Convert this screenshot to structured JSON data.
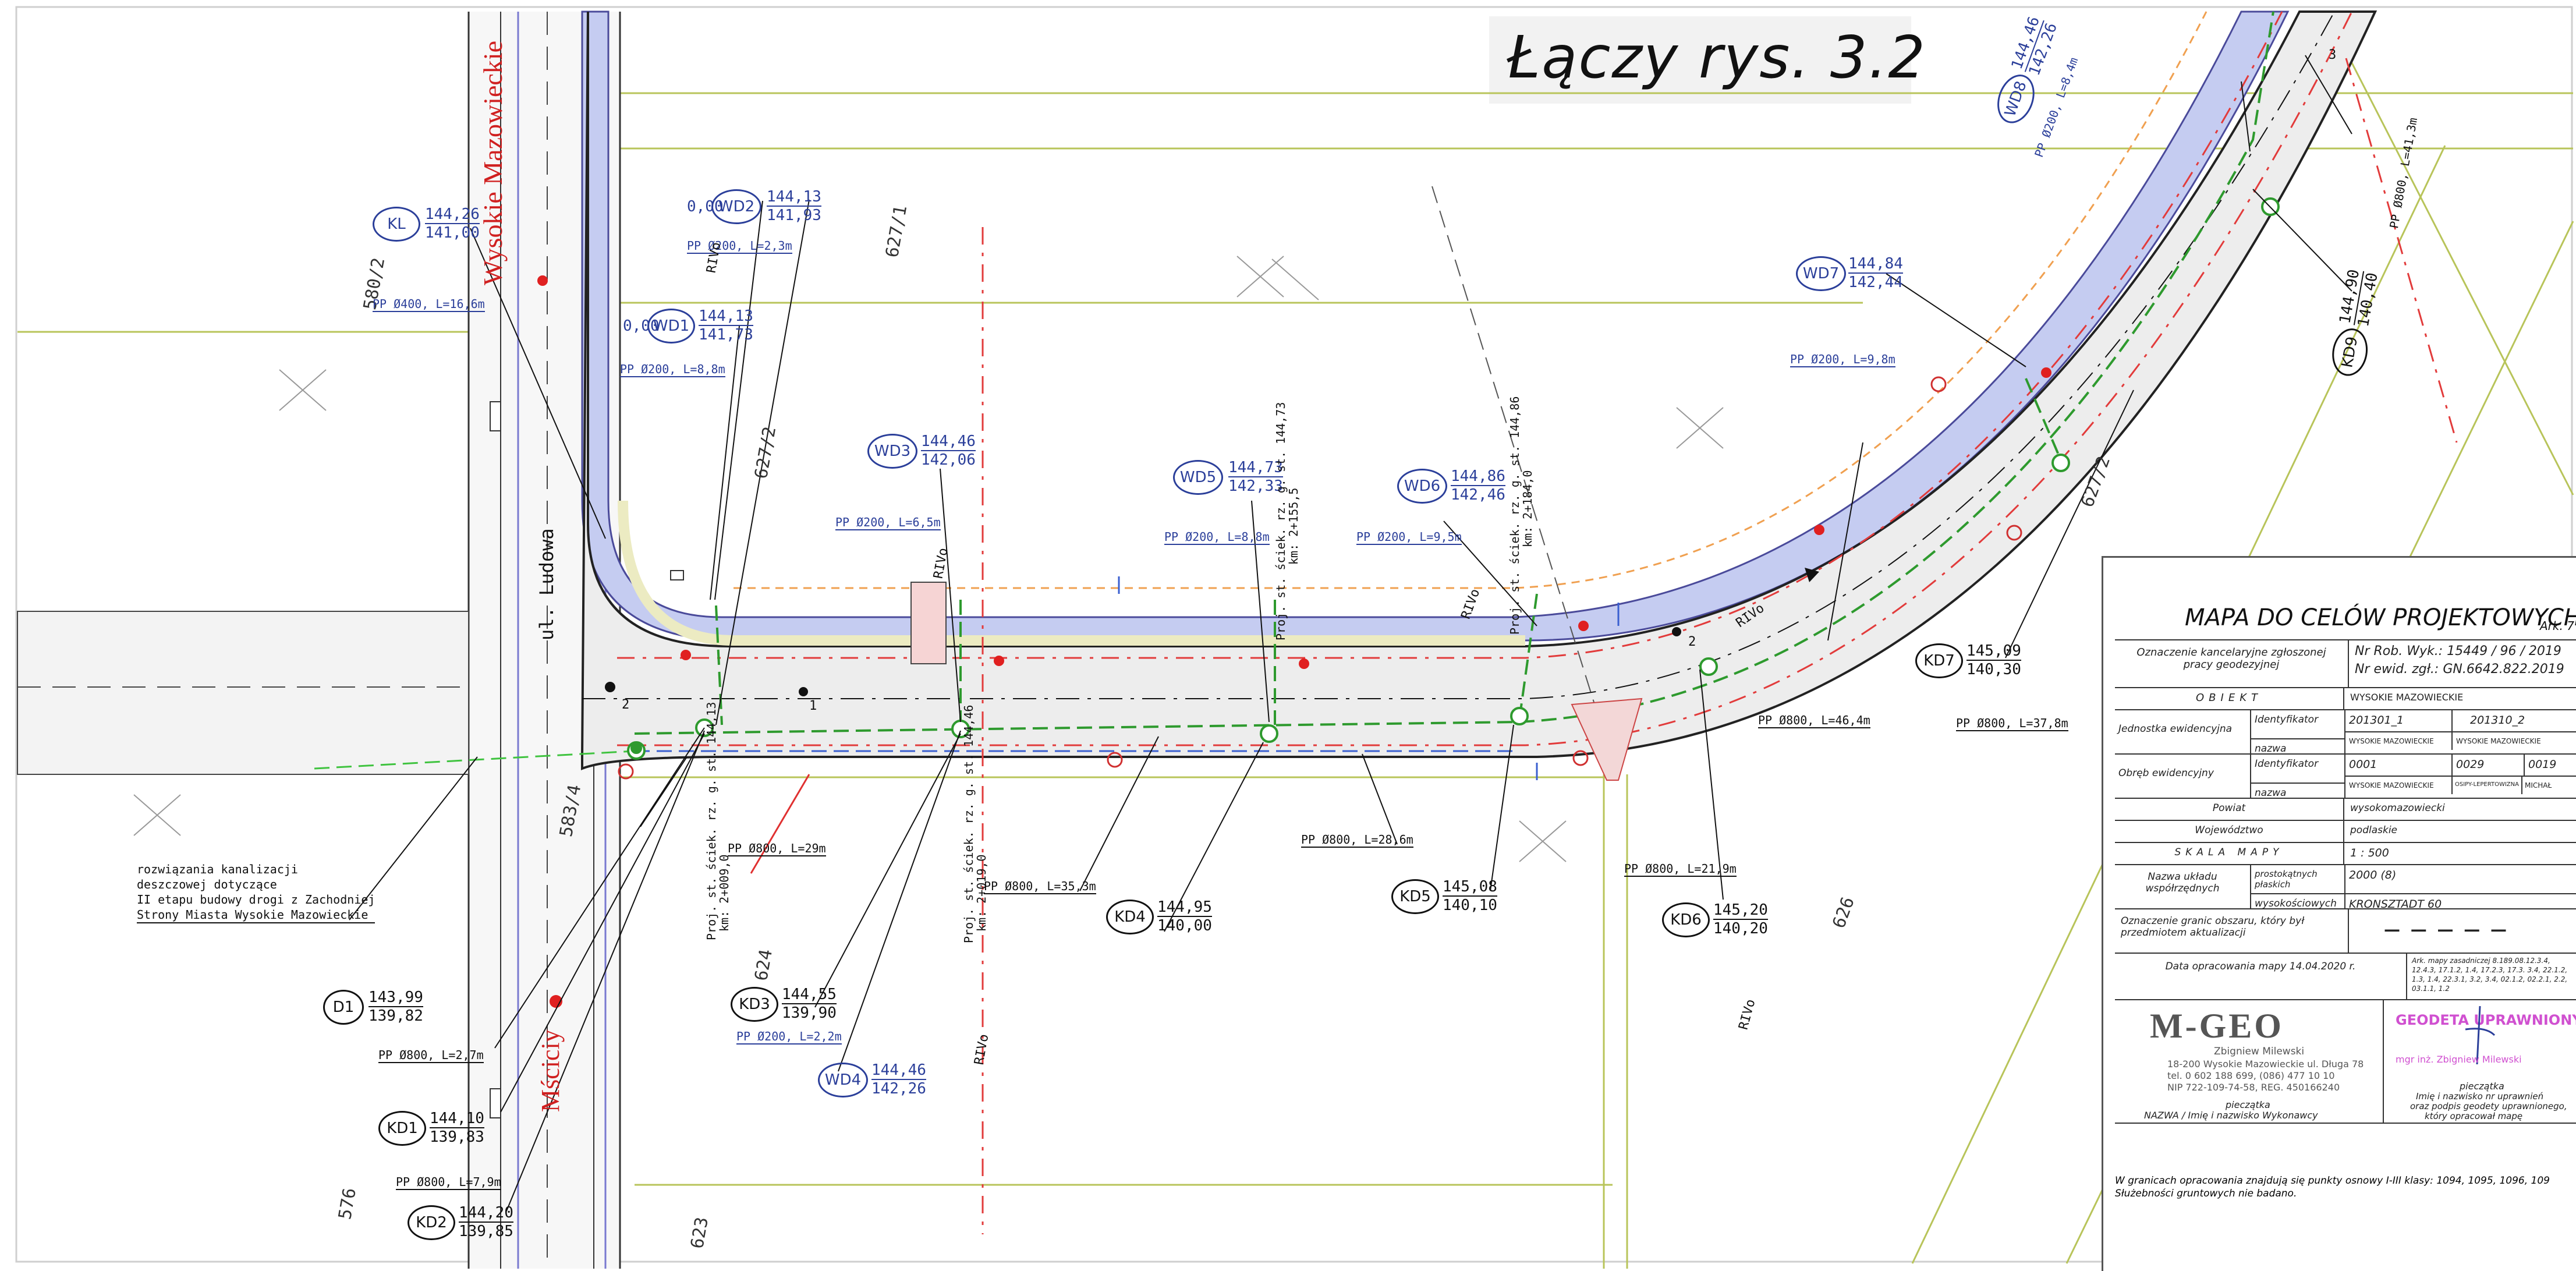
{
  "header_title": "Łączy rys. 3.2",
  "streets": {
    "main_vertical": "Wysokie Mazowieckie",
    "ludowa": "ul. Ludowa",
    "msciciy": "Mściciy"
  },
  "parcels": [
    "580/2",
    "627/1",
    "627/2",
    "583/4",
    "624",
    "623",
    "626",
    "576",
    "627/2"
  ],
  "wells": [
    {
      "id": "KL",
      "top": "144,26",
      "bottom": "141,00"
    },
    {
      "id": "WD2",
      "top": "144,13",
      "bottom": "141,93"
    },
    {
      "id": "WD1",
      "top": "144,13",
      "bottom": "141,73"
    },
    {
      "id": "WD3",
      "top": "144,46",
      "bottom": "142,06"
    },
    {
      "id": "WD5",
      "top": "144,73",
      "bottom": "142,33"
    },
    {
      "id": "WD6",
      "top": "144,86",
      "bottom": "142,46"
    },
    {
      "id": "WD7",
      "top": "144,84",
      "bottom": "142,44"
    },
    {
      "id": "WD8",
      "top": "144,46",
      "bottom": "142,26"
    },
    {
      "id": "KD7",
      "top": "145,09",
      "bottom": "140,30"
    },
    {
      "id": "KD4",
      "top": "144,95",
      "bottom": "140,00"
    },
    {
      "id": "KD5",
      "top": "145,08",
      "bottom": "140,10"
    },
    {
      "id": "KD6",
      "top": "145,20",
      "bottom": "140,20"
    },
    {
      "id": "KD3",
      "top": "144,55",
      "bottom": "139,90"
    },
    {
      "id": "WD4",
      "top": "144,46",
      "bottom": "142,26"
    },
    {
      "id": "D1",
      "top": "143,99",
      "bottom": "139,82"
    },
    {
      "id": "KD1",
      "top": "144,10",
      "bottom": "139,83"
    },
    {
      "id": "KD2",
      "top": "144,20",
      "bottom": "139,85"
    },
    {
      "id": "KD9",
      "top": "144,90",
      "bottom": "140,40"
    }
  ],
  "pipes": {
    "p1": "PP Ø400, L=16,6m",
    "p2": "PP Ø200, L=8,8m",
    "p3": "PP Ø200, L=2,3m",
    "p4": "PP Ø200, L=6,5m",
    "p5": "PP Ø200, L=8,8m",
    "p6": "PP Ø200, L=9,5m",
    "p7": "PP Ø200, L=9,8m",
    "p8": "PP Ø200, L=8,4m",
    "p9": "PP Ø800, L=46,4m",
    "p10": "PP Ø800, L=37,8m",
    "p11": "PP Ø800, L=29m",
    "p12": "PP Ø800, L=35,3m",
    "p13": "PP Ø800, L=28,6m",
    "p14": "PP Ø800, L=21,9m",
    "p15": "PP Ø800, L=2,7m",
    "p16": "PP Ø800, L=7,9m",
    "p17": "PP Ø200, L=2,2m",
    "p18": "PP Ø800, L=41,3m"
  },
  "gutter_labels": {
    "g1": "Proj. st. ściek. rz. g. st. 144,13",
    "g2": "km: 2+009,0",
    "g3": "Proj. st. ściek. rz. g. st. 144,46",
    "g4": "km: 2+019,0",
    "g5": "Proj. st. ściek. rz. g. st. 144,73",
    "g6": "km: 2+155,5",
    "g7": "Proj. st. ściek. rz. g. st. 144,86",
    "g8": "km: 2+184,0"
  },
  "zero_labels": [
    "0,00",
    "0,00"
  ],
  "note_lines": [
    "rozwiązania kanalizacji",
    "deszczowej dotyczące",
    "II etapu budowy drogi z Zachodniej",
    "Strony Miasta Wysokie Mazowieckie"
  ],
  "title_block": {
    "heading": "MAPA DO CELÓW PROJEKTOWYCH",
    "sheet": "Ark. 7",
    "rows": [
      {
        "label": "Oznaczenie kancelaryjne zgłoszonej pracy geodezyjnej",
        "value": "Nr Rob. Wyk.: 15449 / 96 / 2019",
        "value2": "Nr ewid. zgł.: GN.6642.822.2019"
      },
      {
        "label": "OBIEKT",
        "value": "WYSOKIE MAZOWIECKIE"
      },
      {
        "label": "Jednostka ewidencyjna",
        "sub1": "Identyfikator",
        "v1a": "201301_1",
        "v1b": "201310_2",
        "sub2": "nazwa",
        "v2a": "WYSOKIE MAZOWIECKIE",
        "v2b": "WYSOKIE MAZOWIECKIE"
      },
      {
        "label": "Obręb ewidencyjny",
        "sub1": "Identyfikator",
        "v1a": "0001",
        "v1b": "0029",
        "v1c": "0019",
        "sub2": "nazwa",
        "v2a": "WYSOKIE MAZOWIECKIE",
        "v2b": "OSIPY-LEPERTOWIZNA",
        "v2c": "MICHAŁ"
      },
      {
        "label": "Powiat",
        "value": "wysokomazowiecki"
      },
      {
        "label": "Województwo",
        "value": "podlaskie"
      },
      {
        "label": "SKALA MAPY",
        "value": "1 : 500"
      },
      {
        "label": "Nazwa układu współrzędnych",
        "sub1": "prostokątnych płaskich",
        "v1": "2000 (8)",
        "sub2": "wysokościowych",
        "v2": "KRONSZTADT 60"
      },
      {
        "label": "Oznaczenie granic obszaru, który był przedmiotem aktualizacji",
        "value": "— — — — —"
      },
      {
        "label": "Data opracowania mapy 14.04.2020 r.",
        "value": "Ark. mapy zasadniczej 8.189.08.12.3.4, 12.4.3, 17.1.2, 1.4, 17.2.3, 17.3. 3.4, 22.1.2, 1.3, 1.4, 22.3.1, 3.2, 3.4, 02.1.2, 02.2.1, 2.2, 03.1.1, 1.2"
      }
    ],
    "company_name": "M-GEO",
    "company_owner": "Zbigniew Milewski",
    "company_address": "18-200 Wysokie Mazowieckie ul. Długa 78",
    "company_phone": "tel. 0 602 188 699, (086) 477 10 10",
    "company_nip": "NIP 722-109-74-58, REG. 450166240",
    "stamp_left_caption": "pieczątka",
    "stamp_left_label": "NAZWA / Imię i nazwisko Wykonawcy",
    "stamp_right_title": "GEODETA UPRAWNIONY",
    "stamp_right_name": "mgr inż. Zbigniew Milewski",
    "stamp_right_caption": "pieczątka",
    "stamp_right_label1": "Imię i nazwisko nr uprawnień",
    "stamp_right_label2": "oraz podpis geodety uprawnionego,",
    "stamp_right_label3": "który opracował mapę",
    "footer1": "W granicach opracowania znajdują się punkty osnowy I-III klasy: 1094, 1095, 1096, 109",
    "footer2": "Służebności gruntowych nie badano."
  },
  "markers": [
    "1",
    "2",
    "2",
    "3"
  ],
  "rivo_labels": [
    "RIVo",
    "RIVo",
    "RIVo",
    "RIVo",
    "RIVo",
    "RIVo"
  ]
}
